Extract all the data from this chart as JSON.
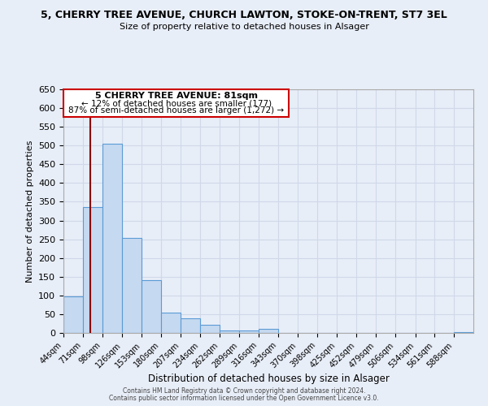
{
  "title": "5, CHERRY TREE AVENUE, CHURCH LAWTON, STOKE-ON-TRENT, ST7 3EL",
  "subtitle": "Size of property relative to detached houses in Alsager",
  "xlabel": "Distribution of detached houses by size in Alsager",
  "ylabel": "Number of detached properties",
  "bar_labels": [
    "44sqm",
    "71sqm",
    "98sqm",
    "126sqm",
    "153sqm",
    "180sqm",
    "207sqm",
    "234sqm",
    "262sqm",
    "289sqm",
    "316sqm",
    "343sqm",
    "370sqm",
    "398sqm",
    "425sqm",
    "452sqm",
    "479sqm",
    "506sqm",
    "534sqm",
    "561sqm",
    "588sqm"
  ],
  "bar_values": [
    97,
    336,
    504,
    254,
    140,
    54,
    38,
    22,
    7,
    7,
    10,
    0,
    0,
    0,
    0,
    0,
    0,
    0,
    0,
    0,
    3
  ],
  "bar_color": "#c5d9f0",
  "bar_edge_color": "#5b9bd5",
  "ylim": [
    0,
    650
  ],
  "yticks": [
    0,
    50,
    100,
    150,
    200,
    250,
    300,
    350,
    400,
    450,
    500,
    550,
    600,
    650
  ],
  "property_line_x": 81,
  "property_line_color": "#8b0000",
  "annotation_title": "5 CHERRY TREE AVENUE: 81sqm",
  "annotation_line1": "← 12% of detached houses are smaller (177)",
  "annotation_line2": "87% of semi-detached houses are larger (1,272) →",
  "annotation_box_color": "#ffffff",
  "annotation_box_edge": "#cc0000",
  "footer1": "Contains HM Land Registry data © Crown copyright and database right 2024.",
  "footer2": "Contains public sector information licensed under the Open Government Licence v3.0.",
  "bin_edges": [
    44,
    71,
    98,
    126,
    153,
    180,
    207,
    234,
    262,
    289,
    316,
    343,
    370,
    398,
    425,
    452,
    479,
    506,
    534,
    561,
    588,
    615
  ],
  "grid_color": "#d0d8e8",
  "background_color": "#e8eef8",
  "figsize": [
    6.0,
    5.0
  ],
  "dpi": 100
}
